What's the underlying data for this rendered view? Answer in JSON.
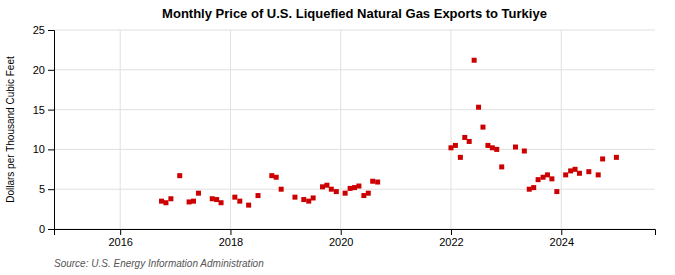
{
  "chart_data": {
    "type": "scatter",
    "title": "Monthly Price of U.S. Liquefied Natural Gas Exports to Turkiye",
    "y_label": "Dollars per Thousand Cubic Feet",
    "source": "Source: U.S. Energy Information Administration",
    "color": "#cc0000",
    "marker": "square",
    "grid": true,
    "xlim": [
      2014.8,
      2025.7
    ],
    "xticks": [
      2016,
      2018,
      2020,
      2022,
      2024
    ],
    "ylim": [
      0,
      25
    ],
    "yticks": [
      0,
      5,
      10,
      15,
      20,
      25
    ],
    "x": [
      2016.75,
      2016.83,
      2016.92,
      2017.08,
      2017.25,
      2017.33,
      2017.42,
      2017.67,
      2017.75,
      2017.83,
      2018.08,
      2018.17,
      2018.33,
      2018.5,
      2018.75,
      2018.83,
      2018.92,
      2019.17,
      2019.33,
      2019.42,
      2019.5,
      2019.67,
      2019.75,
      2019.83,
      2019.92,
      2020.08,
      2020.17,
      2020.25,
      2020.33,
      2020.42,
      2020.5,
      2020.58,
      2020.67,
      2022.0,
      2022.08,
      2022.17,
      2022.25,
      2022.33,
      2022.42,
      2022.5,
      2022.58,
      2022.67,
      2022.75,
      2022.83,
      2022.92,
      2023.17,
      2023.33,
      2023.42,
      2023.5,
      2023.58,
      2023.67,
      2023.75,
      2023.83,
      2023.92,
      2024.08,
      2024.17,
      2024.25,
      2024.33,
      2024.5,
      2024.67,
      2024.75,
      2025.0
    ],
    "values": [
      3.5,
      3.3,
      3.8,
      6.7,
      3.4,
      3.5,
      4.5,
      3.8,
      3.7,
      3.3,
      4.0,
      3.5,
      3.0,
      4.2,
      6.7,
      6.5,
      5.0,
      4.0,
      3.7,
      3.5,
      3.9,
      5.3,
      5.5,
      5.0,
      4.7,
      4.5,
      5.1,
      5.2,
      5.4,
      4.2,
      4.5,
      6.0,
      5.9,
      10.2,
      10.5,
      9.0,
      11.5,
      11.0,
      21.2,
      15.3,
      12.8,
      10.5,
      10.2,
      10.0,
      7.8,
      10.3,
      9.8,
      5.0,
      5.2,
      6.2,
      6.5,
      6.8,
      6.3,
      4.7,
      6.8,
      7.3,
      7.5,
      7.0,
      7.2,
      6.8,
      8.8,
      9.0
    ]
  }
}
